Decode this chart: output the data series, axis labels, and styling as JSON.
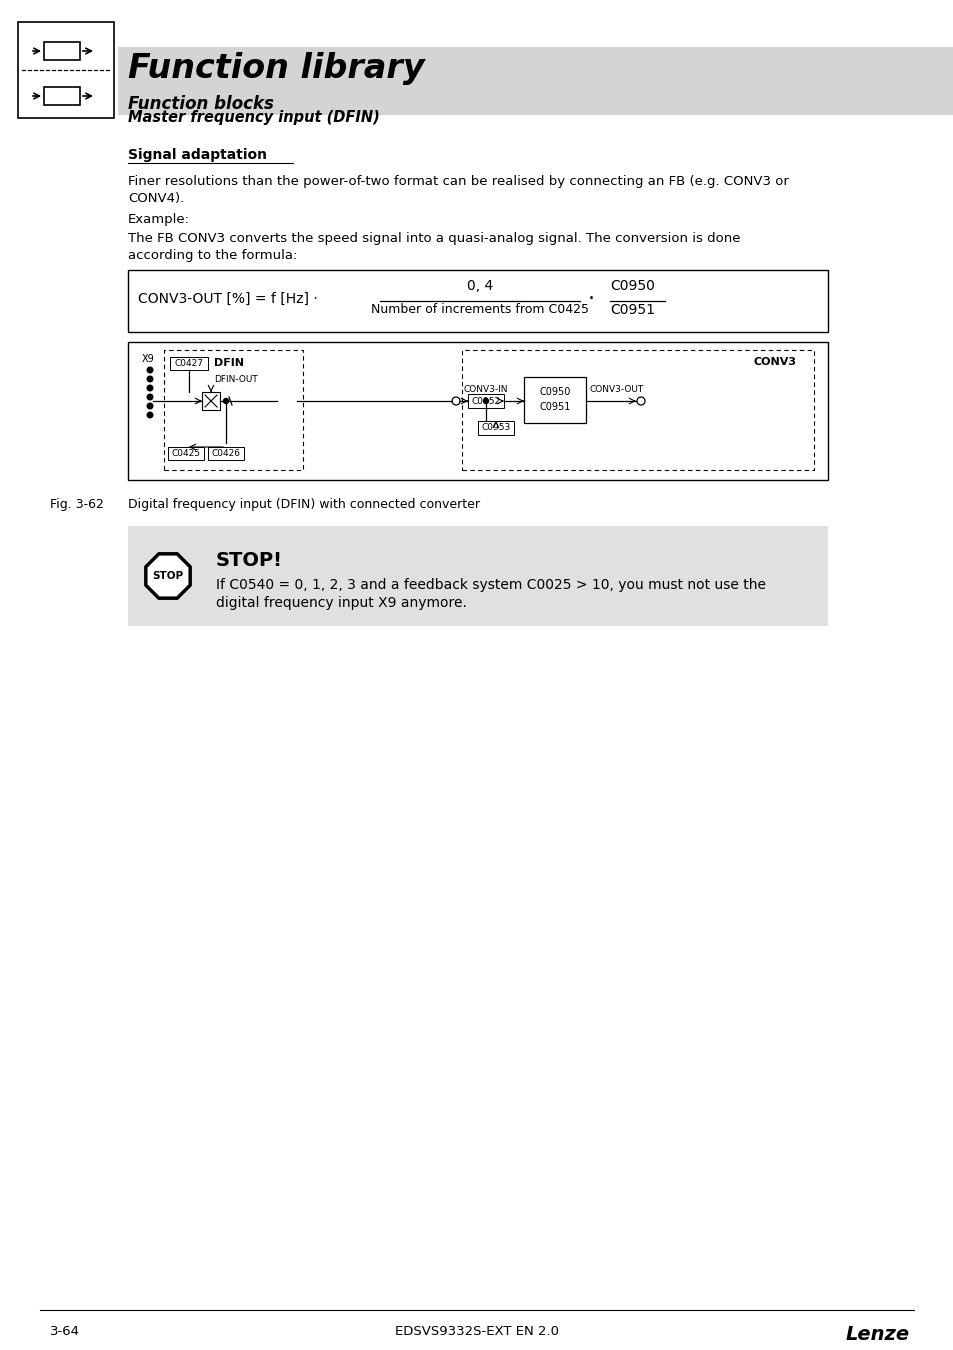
{
  "title": "Function library",
  "subtitle1": "Function blocks",
  "subtitle2": "Master frequency input (DFIN)",
  "bg_header_color": "#d4d4d4",
  "section_heading": "Signal adaptation",
  "para1": "Finer resolutions than the power-of-two format can be realised by connecting an FB (e.g. CONV3 or\nCONV4).",
  "para2": "Example:",
  "para3": "The FB CONV3 converts the speed signal into a quasi-analog signal. The conversion is done\naccording to the formula:",
  "formula_lhs": "CONV3-OUT [%] = f [Hz] ·",
  "formula_num": "0, 4",
  "formula_den": "Number of increments from C0425",
  "formula_frac2_num": "C0950",
  "formula_frac2_den": "C0951",
  "fig_caption_label": "Fig. 3-62",
  "fig_caption_text": "Digital frequency input (DFIN) with connected converter",
  "stop_title": "STOP!",
  "stop_text1": "If C0540 = 0, 1, 2, 3 and a feedback system C0025 > 10, you must not use the",
  "stop_text2": "digital frequency input X9 anymore.",
  "footer_left": "3-64",
  "footer_center": "EDSVS9332S-EXT EN 2.0",
  "footer_right": "Lenze",
  "page_bg": "#ffffff",
  "stop_bg": "#e0e0e0",
  "header_box_bg": "#d4d4d4"
}
